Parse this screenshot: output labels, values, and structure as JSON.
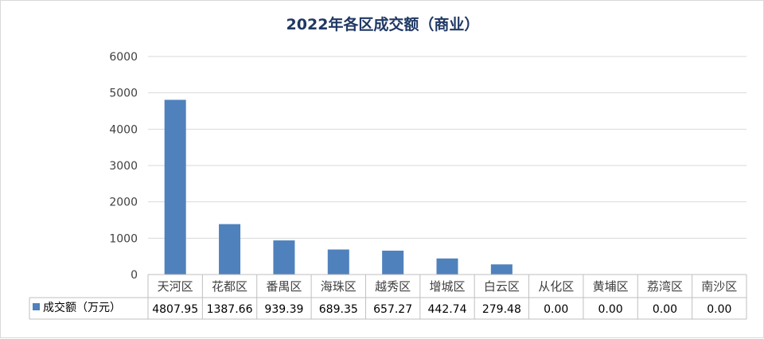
{
  "chart_data": {
    "type": "bar",
    "title": "2022年各区成交额（商业）",
    "categories": [
      "天河区",
      "花都区",
      "番禺区",
      "海珠区",
      "越秀区",
      "增城区",
      "白云区",
      "从化区",
      "黄埔区",
      "荔湾区",
      "南沙区"
    ],
    "series": [
      {
        "name": "成交额（万元）",
        "values": [
          4807.95,
          1387.66,
          939.39,
          689.35,
          657.27,
          442.74,
          279.48,
          0,
          0,
          0,
          0
        ],
        "labels": [
          "4807.95",
          "1387.66",
          "939.39",
          "689.35",
          "657.27",
          "442.74",
          "279.48",
          "0.00",
          "0.00",
          "0.00",
          "0.00"
        ],
        "color": "#4f81bd"
      }
    ],
    "ylim": [
      0,
      6000
    ],
    "yticks": [
      "0",
      "1000",
      "2000",
      "3000",
      "4000",
      "5000",
      "6000"
    ],
    "grid": true,
    "legend": "data-table-left"
  }
}
